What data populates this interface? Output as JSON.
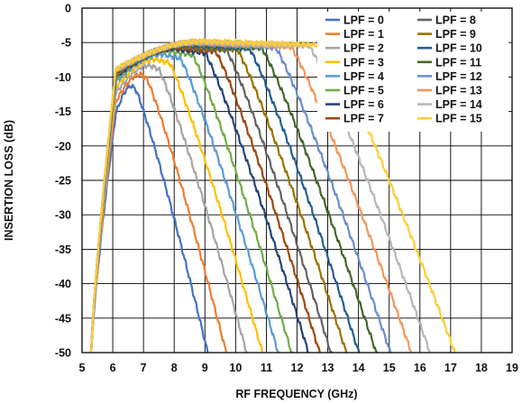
{
  "chart_data": {
    "type": "line",
    "xlabel": "RF FREQUENCY (GHz)",
    "ylabel": "INSERTION LOSS (dB)",
    "xlim": [
      5,
      19
    ],
    "ylim": [
      -50,
      0
    ],
    "xticks": [
      5,
      6,
      7,
      8,
      9,
      10,
      11,
      12,
      13,
      14,
      15,
      16,
      17,
      18,
      19
    ],
    "yticks": [
      0,
      -5,
      -10,
      -15,
      -20,
      -25,
      -30,
      -35,
      -40,
      -45,
      -50
    ],
    "grid": true,
    "legend_position": "top-right",
    "series": [
      {
        "name": "LPF = 0",
        "color": "#4472C4",
        "low": 5.3,
        "peak": -11.3,
        "peak_f": 6.6,
        "fc": 6.75,
        "slope": 13.0
      },
      {
        "name": "LPF = 1",
        "color": "#ED7D31",
        "low": 5.3,
        "peak": -9.6,
        "peak_f": 6.9,
        "fc": 7.1,
        "slope": 12.0
      },
      {
        "name": "LPF = 2",
        "color": "#A5A5A5",
        "low": 5.3,
        "peak": -8.3,
        "peak_f": 7.2,
        "fc": 7.5,
        "slope": 11.0
      },
      {
        "name": "LPF = 3",
        "color": "#FFC000",
        "low": 5.3,
        "peak": -7.4,
        "peak_f": 7.4,
        "fc": 7.85,
        "slope": 10.5
      },
      {
        "name": "LPF = 4",
        "color": "#5B9BD5",
        "low": 5.3,
        "peak": -6.7,
        "peak_f": 7.6,
        "fc": 8.2,
        "slope": 10.0
      },
      {
        "name": "LPF = 5",
        "color": "#70AD47",
        "low": 5.3,
        "peak": -6.2,
        "peak_f": 7.8,
        "fc": 8.6,
        "slope": 10.0
      },
      {
        "name": "LPF = 6",
        "color": "#264478",
        "low": 5.3,
        "peak": -5.9,
        "peak_f": 8.0,
        "fc": 9.0,
        "slope": 9.5
      },
      {
        "name": "LPF = 7",
        "color": "#9E480E",
        "low": 5.3,
        "peak": -5.7,
        "peak_f": 8.1,
        "fc": 9.35,
        "slope": 9.5
      },
      {
        "name": "LPF = 8",
        "color": "#636363",
        "low": 5.3,
        "peak": -5.5,
        "peak_f": 8.2,
        "fc": 9.7,
        "slope": 9.5
      },
      {
        "name": "LPF = 9",
        "color": "#997300",
        "low": 5.3,
        "peak": -5.4,
        "peak_f": 8.3,
        "fc": 10.05,
        "slope": 9.0
      },
      {
        "name": "LPF = 10",
        "color": "#255E91",
        "low": 5.3,
        "peak": -5.3,
        "peak_f": 8.4,
        "fc": 10.45,
        "slope": 9.0
      },
      {
        "name": "LPF = 11",
        "color": "#43682B",
        "low": 5.3,
        "peak": -5.2,
        "peak_f": 8.5,
        "fc": 10.85,
        "slope": 8.5
      },
      {
        "name": "LPF = 12",
        "color": "#698ED0",
        "low": 5.3,
        "peak": -5.1,
        "peak_f": 8.6,
        "fc": 11.3,
        "slope": 8.5
      },
      {
        "name": "LPF = 13",
        "color": "#F1975A",
        "low": 5.3,
        "peak": -5.0,
        "peak_f": 8.7,
        "fc": 11.8,
        "slope": 8.0
      },
      {
        "name": "LPF = 14",
        "color": "#B7B7B7",
        "low": 5.3,
        "peak": -4.9,
        "peak_f": 8.8,
        "fc": 12.4,
        "slope": 8.0
      },
      {
        "name": "LPF = 15",
        "color": "#FFCD33",
        "low": 5.3,
        "peak": -4.8,
        "peak_f": 8.9,
        "fc": 13.0,
        "slope": 7.5
      }
    ]
  }
}
